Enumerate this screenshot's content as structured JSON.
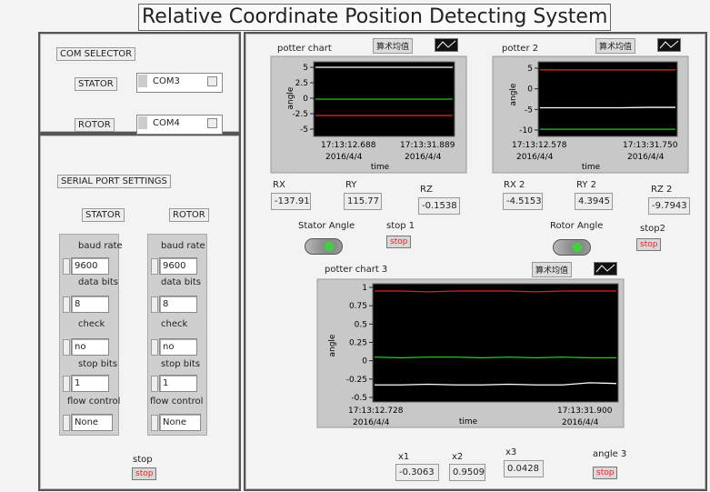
{
  "title": "Relative Coordinate Position Detecting System",
  "com_selector": {
    "heading": "COM SELECTOR",
    "stator": {
      "label": "STATOR",
      "value": "COM3"
    },
    "rotor": {
      "label": "ROTOR",
      "value": "COM4"
    }
  },
  "serial_port_settings": {
    "heading": "SERIAL PORT SETTINGS",
    "columns": [
      {
        "header": "STATOR",
        "fields": [
          {
            "label": "baud rate",
            "value": "9600"
          },
          {
            "label": "data bits",
            "value": "8"
          },
          {
            "label": "check",
            "value": "no"
          },
          {
            "label": "stop bits",
            "value": "1"
          },
          {
            "label": "flow control",
            "value": "None"
          }
        ]
      },
      {
        "header": "ROTOR",
        "fields": [
          {
            "label": "baud rate",
            "value": "9600"
          },
          {
            "label": "data bits",
            "value": "8"
          },
          {
            "label": "check",
            "value": "no"
          },
          {
            "label": "stop bits",
            "value": "1"
          },
          {
            "label": "flow control",
            "value": "None"
          }
        ]
      }
    ],
    "stop": {
      "label": "stop",
      "button": "stop"
    }
  },
  "charts": [
    {
      "title": "potter chart",
      "mode": "算术均值",
      "y_label": "angle",
      "x_label": "time",
      "ylim": [
        -5,
        5
      ],
      "yticks": [
        5,
        2.5,
        0,
        -2.5,
        -5
      ],
      "x_ticks": [
        {
          "time": "17:13:12.688",
          "date": "2016/4/4"
        },
        {
          "time": "17:13:31.889",
          "date": "2016/4/4"
        }
      ],
      "series": [
        {
          "color": "#ffffff",
          "values": [
            5,
            5,
            5,
            5,
            5,
            5
          ]
        },
        {
          "color": "#22c422",
          "values": [
            -0.15,
            -0.15,
            -0.15,
            -0.15,
            -0.15,
            -0.15
          ]
        },
        {
          "color": "#e02020",
          "values": [
            -2.8,
            -2.8,
            -2.8,
            -2.8,
            -2.8,
            -2.8
          ]
        }
      ]
    },
    {
      "title": "potter 2",
      "mode": "算术均值",
      "y_label": "angle",
      "x_label": "time",
      "ylim": [
        -10,
        5
      ],
      "yticks": [
        5,
        0,
        -5,
        -10
      ],
      "x_ticks": [
        {
          "time": "17:13:12.578",
          "date": "2016/4/4"
        },
        {
          "time": "17:13:31.750",
          "date": "2016/4/4"
        }
      ],
      "series": [
        {
          "color": "#e02020",
          "values": [
            4.6,
            4.6,
            4.6,
            4.6,
            4.6,
            4.6
          ]
        },
        {
          "color": "#ffffff",
          "values": [
            -4.6,
            -4.6,
            -4.6,
            -4.6,
            -4.5,
            -4.5
          ]
        },
        {
          "color": "#22c422",
          "values": [
            -9.8,
            -9.8,
            -9.8,
            -9.8,
            -9.8,
            -9.8
          ]
        }
      ]
    },
    {
      "title": "potter chart 3",
      "mode": "算术均值",
      "y_label": "angle",
      "x_label": "time",
      "ylim": [
        -0.5,
        1
      ],
      "yticks": [
        1,
        0.75,
        0.5,
        0.25,
        0,
        -0.25,
        -0.5
      ],
      "x_ticks": [
        {
          "time": "17:13:12.728",
          "date": "2016/4/4"
        },
        {
          "time": "17:13:31.900",
          "date": "2016/4/4"
        }
      ],
      "series": [
        {
          "color": "#e02020",
          "values": [
            0.95,
            0.95,
            0.94,
            0.95,
            0.95,
            0.95,
            0.94,
            0.95,
            0.95,
            0.95
          ]
        },
        {
          "color": "#22c422",
          "values": [
            0.05,
            0.04,
            0.05,
            0.05,
            0.04,
            0.05,
            0.04,
            0.05,
            0.04,
            0.04
          ]
        },
        {
          "color": "#ffffff",
          "values": [
            -0.33,
            -0.33,
            -0.32,
            -0.33,
            -0.33,
            -0.32,
            -0.33,
            -0.33,
            -0.3,
            -0.31
          ]
        }
      ]
    }
  ],
  "indicators": [
    {
      "label": "RX",
      "value": "-137.91"
    },
    {
      "label": "RY",
      "value": "115.77"
    },
    {
      "label": "RZ",
      "value": "-0.1538"
    },
    {
      "label": "RX 2",
      "value": "-4.5153"
    },
    {
      "label": "RY 2",
      "value": "4.3945"
    },
    {
      "label": "RZ 2",
      "value": "-9.7943"
    },
    {
      "label": "x1",
      "value": "-0.3063"
    },
    {
      "label": "x2",
      "value": "0.9509"
    },
    {
      "label": "x3",
      "value": "0.0428"
    }
  ],
  "switches": [
    {
      "label": "Stator Angle"
    },
    {
      "label": "Rotor Angle"
    }
  ],
  "stop_buttons": [
    {
      "label": "stop 1",
      "button": "stop"
    },
    {
      "label": "stop2",
      "button": "stop"
    },
    {
      "label": "angle 3",
      "button": "stop"
    }
  ]
}
